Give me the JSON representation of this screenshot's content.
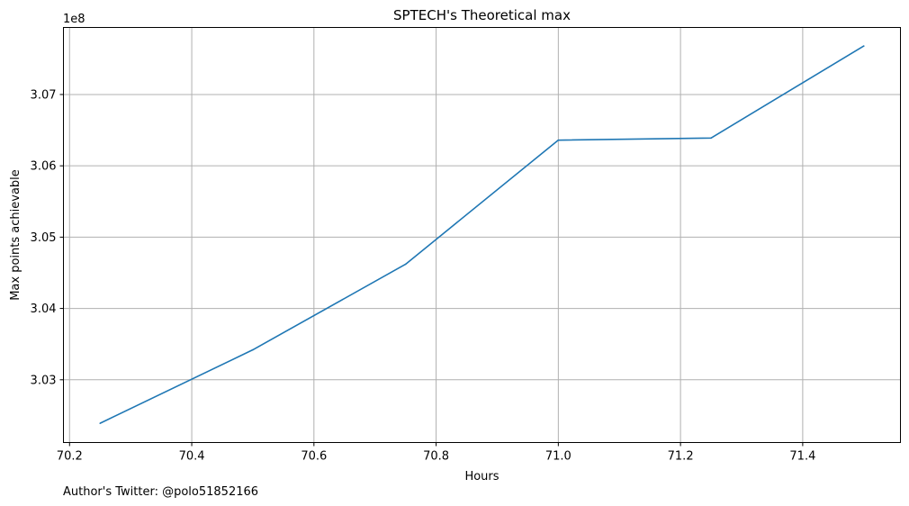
{
  "chart_data": {
    "type": "line",
    "title": "SPTECH's Theoretical max",
    "xlabel": "Hours",
    "ylabel": "Max points achievable",
    "y_offset_label": "1e8",
    "y_scale_factor": 100000000,
    "xlim": [
      70.19,
      71.56
    ],
    "ylim": [
      3.0212,
      3.0794
    ],
    "x_ticks": [
      70.2,
      70.4,
      70.6,
      70.8,
      71.0,
      71.2,
      71.4
    ],
    "x_tick_labels": [
      "70.2",
      "70.4",
      "70.6",
      "70.8",
      "71.0",
      "71.2",
      "71.4"
    ],
    "y_ticks": [
      3.03,
      3.04,
      3.05,
      3.06,
      3.07
    ],
    "y_tick_labels": [
      "3.03",
      "3.04",
      "3.05",
      "3.06",
      "3.07"
    ],
    "grid": true,
    "series": [
      {
        "color": "#1f77b4",
        "x": [
          70.25,
          70.5,
          70.75,
          71.0,
          71.25,
          71.5
        ],
        "y": [
          3.0239,
          3.0342,
          3.0462,
          3.0636,
          3.0639,
          3.0768
        ]
      }
    ]
  },
  "footer": {
    "text": "Author's Twitter: @polo51852166"
  }
}
